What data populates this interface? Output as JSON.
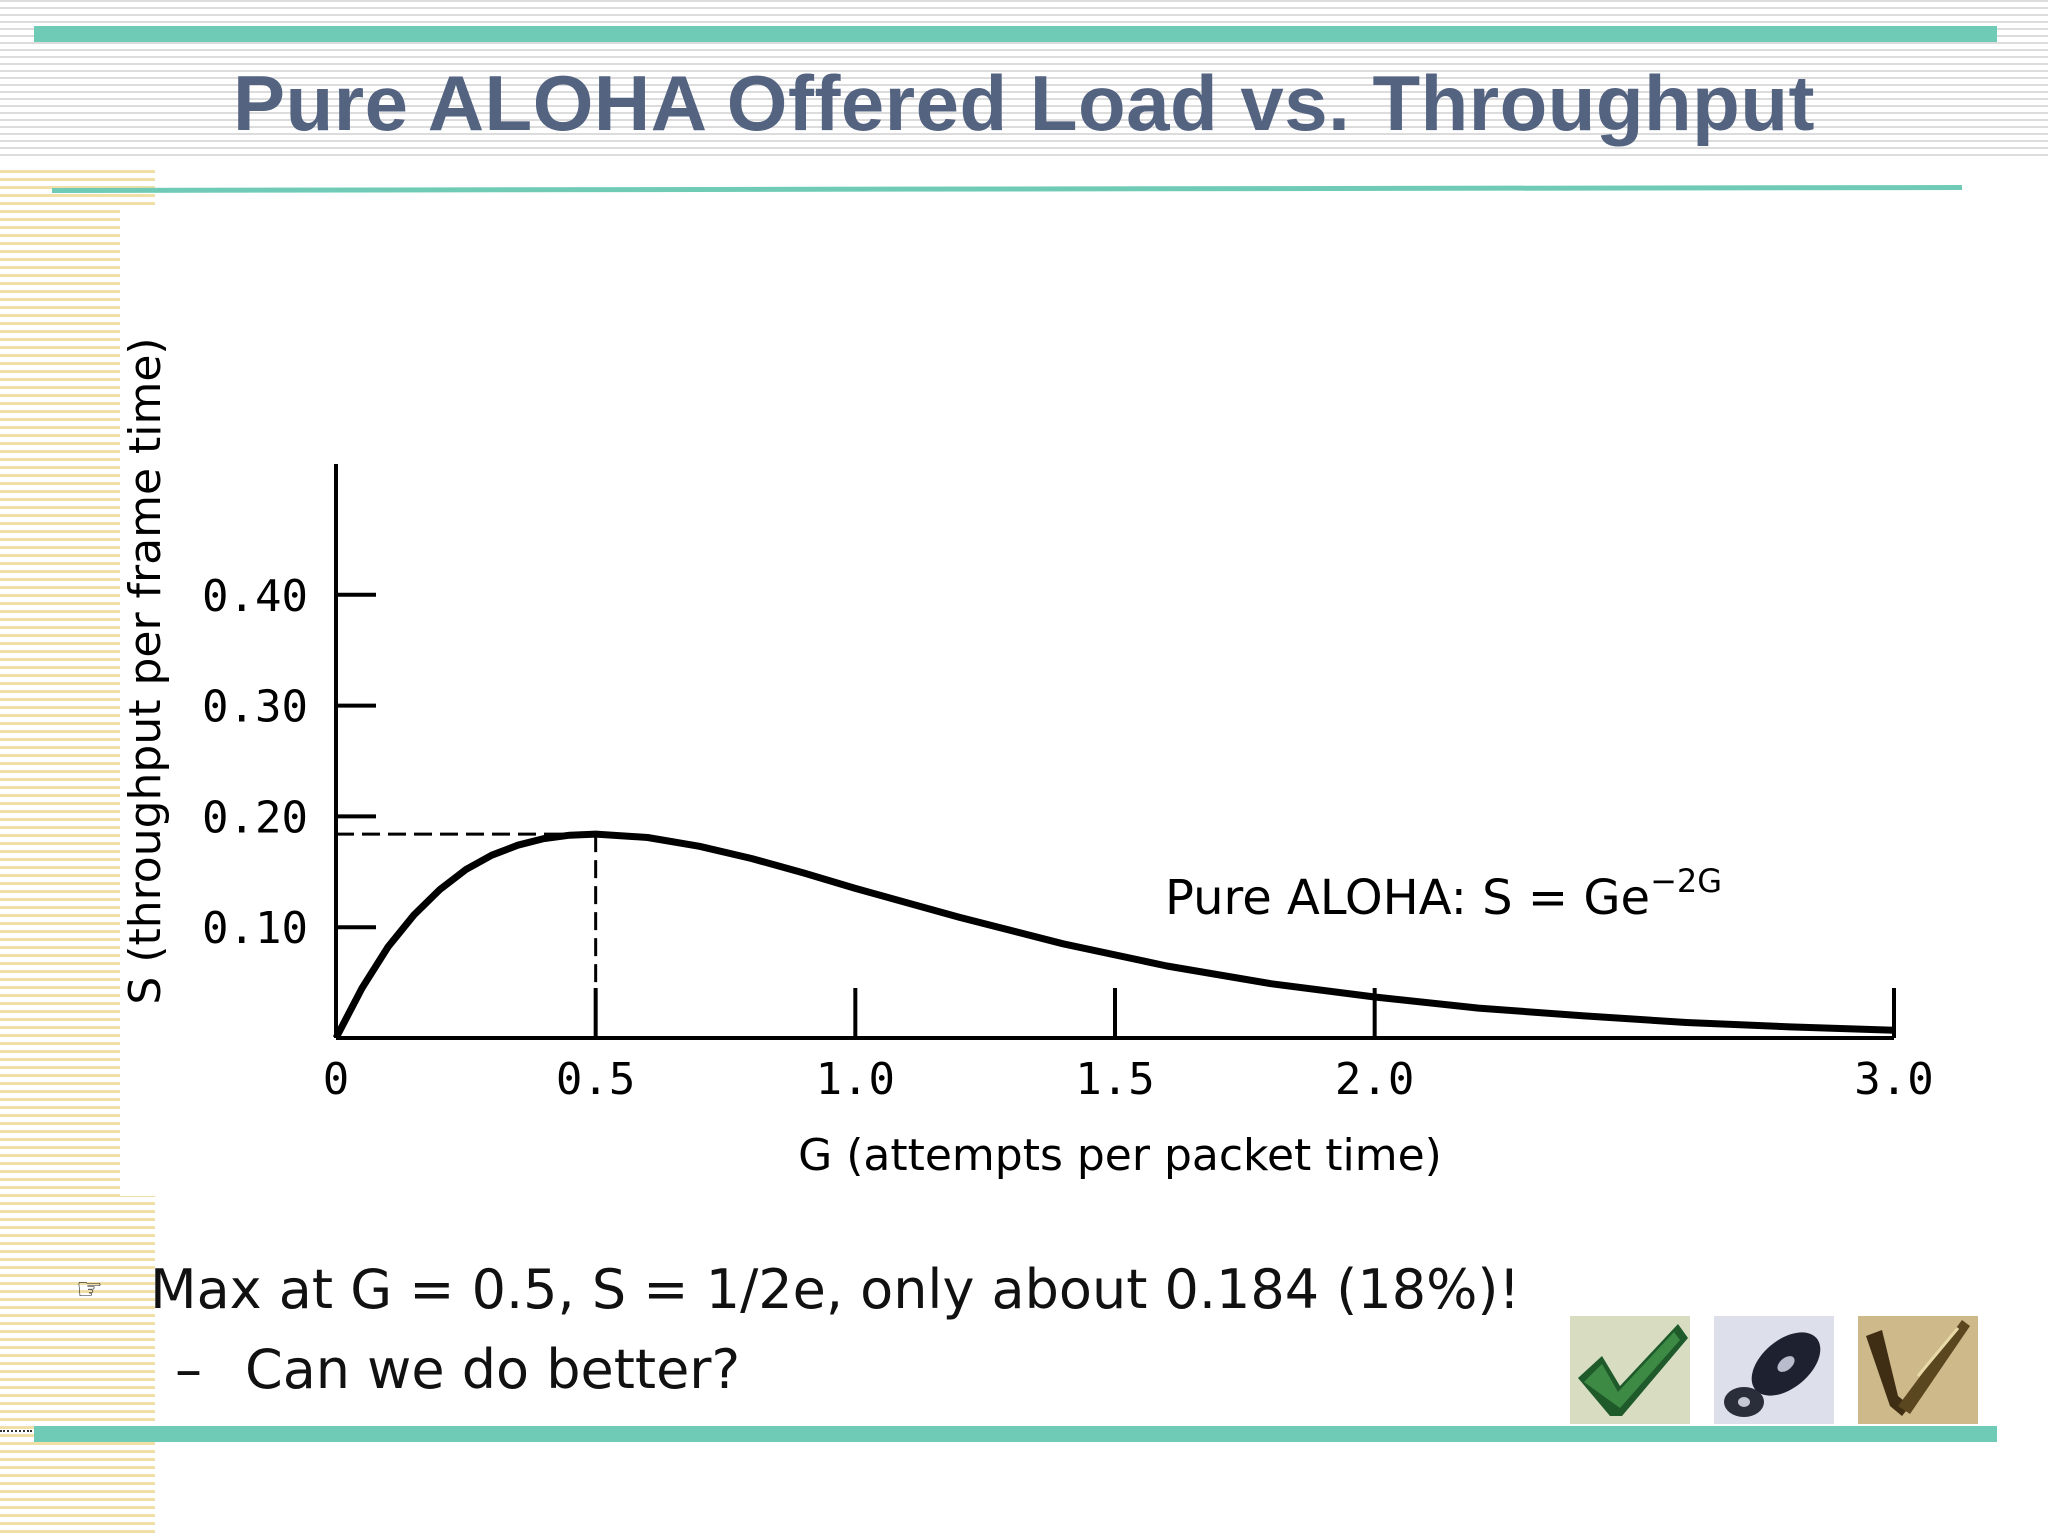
{
  "slide": {
    "title": "Pure ALOHA Offered Load vs. Throughput",
    "bullet": "Max at G = 0.5, S = 1/2e, only about 0.184 (18%)!",
    "sub_bullet": "Can we do better?",
    "sub_marker": "–",
    "bullet_icon": "pointing-hand-icon",
    "thumbnails": [
      "checkmark-icon",
      "disc-icon",
      "pen-icon"
    ]
  },
  "colors": {
    "accent_bar": "#6fcbb6",
    "title": "#536380",
    "curve": "#000000"
  },
  "chart_data": {
    "type": "line",
    "xlabel": "G (attempts per packet time)",
    "ylabel": "S (throughput per frame time)",
    "xlim": [
      0,
      3.0
    ],
    "ylim": [
      0,
      0.5
    ],
    "x_ticks": [
      0,
      0.5,
      1.0,
      1.5,
      2.0,
      3.0
    ],
    "x_tick_labels": [
      "0",
      "0.5",
      "1.0",
      "1.5",
      "2.0",
      "3.0"
    ],
    "y_ticks": [
      0.1,
      0.2,
      0.3,
      0.4
    ],
    "y_tick_labels": [
      "0.10",
      "0.20",
      "0.30",
      "0.40"
    ],
    "series": [
      {
        "formula": "S = G * exp(-2G)",
        "x": [
          0,
          0.05,
          0.1,
          0.15,
          0.2,
          0.25,
          0.3,
          0.35,
          0.4,
          0.45,
          0.5,
          0.6,
          0.7,
          0.8,
          0.9,
          1.0,
          1.2,
          1.4,
          1.6,
          1.8,
          2.0,
          2.2,
          2.4,
          2.6,
          2.8,
          3.0
        ],
        "y": [
          0,
          0.045,
          0.082,
          0.111,
          0.134,
          0.152,
          0.165,
          0.174,
          0.18,
          0.183,
          0.184,
          0.181,
          0.173,
          0.162,
          0.149,
          0.135,
          0.109,
          0.085,
          0.065,
          0.049,
          0.037,
          0.027,
          0.02,
          0.014,
          0.01,
          0.007
        ]
      }
    ],
    "annotation": {
      "text": "Pure ALOHA: S = Ge",
      "superscript": "−2G"
    },
    "reference_point": {
      "x": 0.5,
      "y": 0.184
    }
  }
}
